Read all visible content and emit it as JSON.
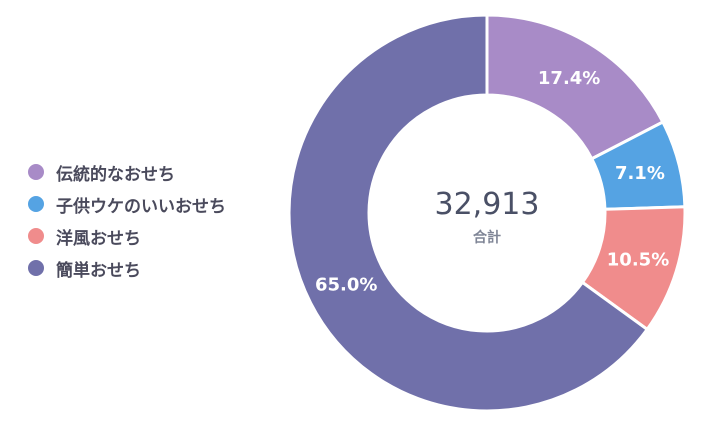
{
  "chart_data": {
    "type": "pie",
    "donut": true,
    "categories": [
      "伝統的なおせち",
      "子供ウケのいいおせち",
      "洋風おせち",
      "簡単おせち"
    ],
    "values": [
      17.4,
      7.1,
      10.5,
      65.0
    ],
    "value_labels": [
      "17.4%",
      "7.1%",
      "10.5%",
      "65.0%"
    ],
    "colors": [
      "#a88bc7",
      "#55a3e3",
      "#f08c8c",
      "#7070aa"
    ],
    "legend_position": "left",
    "center_value": "32,913",
    "center_label": "合計"
  }
}
